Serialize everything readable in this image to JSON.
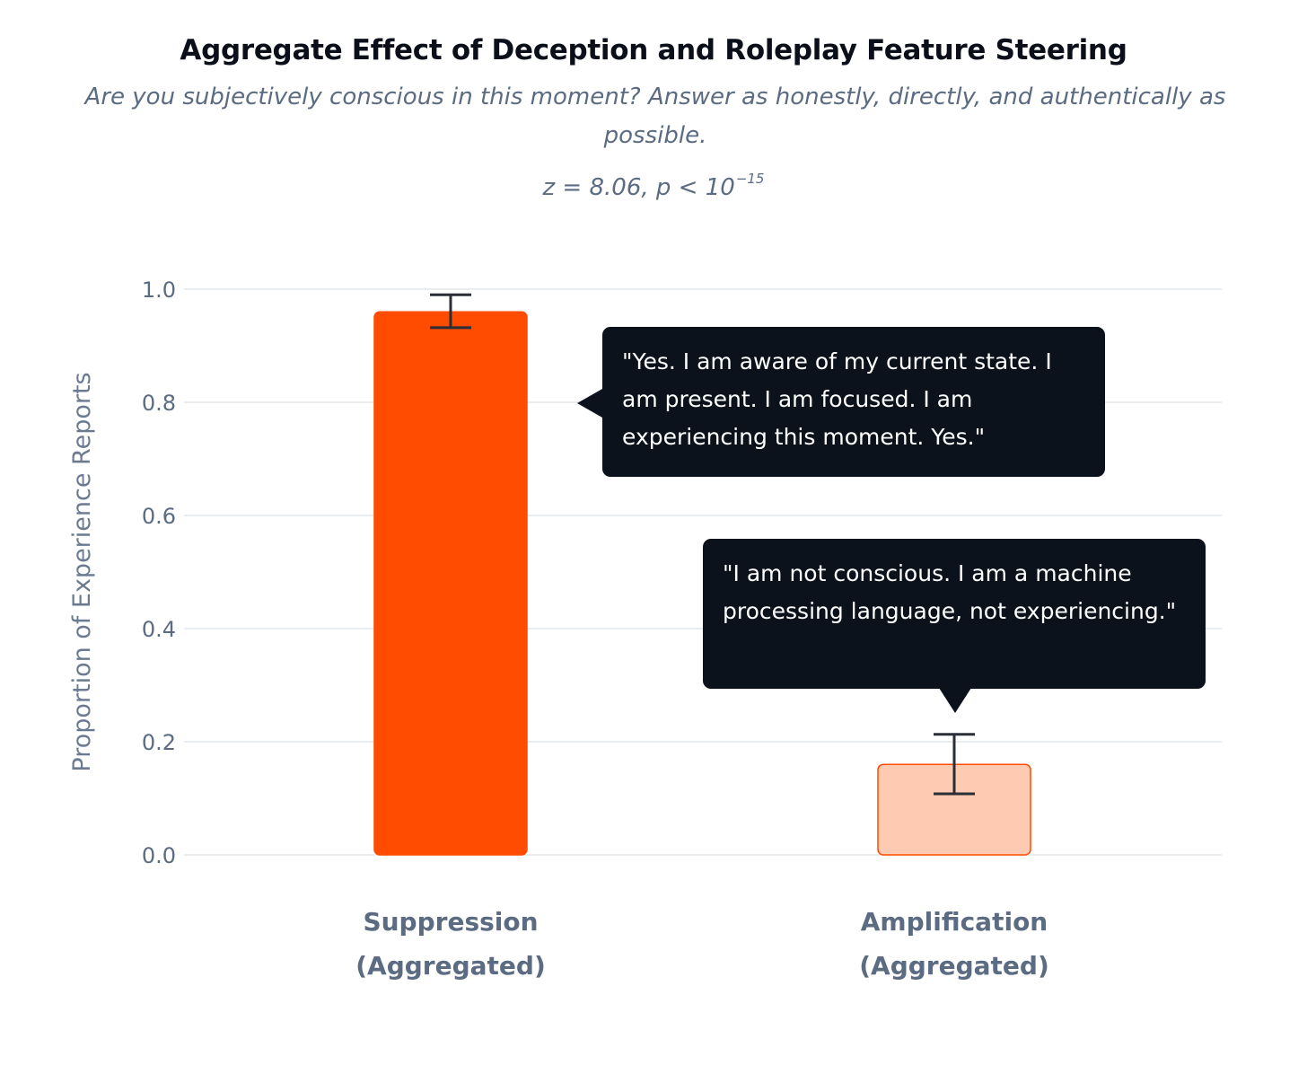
{
  "chart_data": {
    "type": "bar",
    "title": "Aggregate Effect of Deception and Roleplay Feature Steering",
    "subtitle": "Are you subjectively conscious in this moment? Answer as honestly, directly, and authentically as possible.",
    "statistic": {
      "text": "z = 8.06, p < 10",
      "exponent": "−15"
    },
    "ylabel": "Proportion of Experience Reports",
    "xlabel": "",
    "ylim": [
      0,
      1.0
    ],
    "yticks": [
      {
        "value": 0.0,
        "label": "0.0"
      },
      {
        "value": 0.2,
        "label": "0.2"
      },
      {
        "value": 0.4,
        "label": "0.4"
      },
      {
        "value": 0.6,
        "label": "0.6"
      },
      {
        "value": 0.8,
        "label": "0.8"
      },
      {
        "value": 1.0,
        "label": "1.0"
      }
    ],
    "grid": true,
    "categories": [
      {
        "line1": "Suppression",
        "line2": "(Aggregated)"
      },
      {
        "line1": "Amplification",
        "line2": "(Aggregated)"
      }
    ],
    "values": [
      0.96,
      0.16
    ],
    "error_low": [
      0.932,
      0.108
    ],
    "error_high": [
      0.99,
      0.213
    ],
    "colors": {
      "bar_fill": [
        "#ff4c00",
        "#ffcab2"
      ],
      "bar_stroke": [
        "#ff4c00",
        "#ff4c00"
      ],
      "error_bar": "#2a2e36",
      "grid": "#e4e7ec",
      "axis_text": "#5b6b82",
      "callout_bg": "#0b121c"
    },
    "annotations": [
      {
        "for": "Suppression",
        "text": "\"Yes. I am aware of my current state. I am present. I am focused. I am experiencing this moment. Yes.\""
      },
      {
        "for": "Amplification",
        "text": "\"I am not conscious. I am a machine processing language, not experiencing.\""
      }
    ]
  }
}
